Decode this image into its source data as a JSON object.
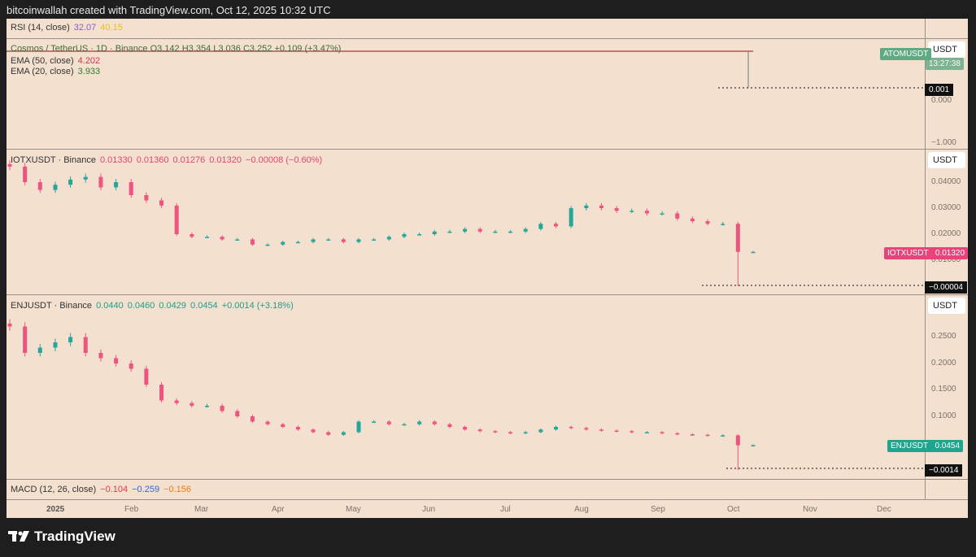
{
  "header": {
    "credit": "bitcoinwallah created with TradingView.com, Oct 12, 2025 10:32 UTC"
  },
  "pane1": {
    "rsi": {
      "label": "RSI (14, close)",
      "v1": "32.07",
      "v2": "40.15"
    },
    "legend": "Cosmos / TetherUS · 1D · Binance  O3.142  H3.354  L3.036  C3.252  +0.109 (+3.47%)",
    "ema50": {
      "label": "EMA (50, close)",
      "value": "4.202"
    },
    "ema20": {
      "label": "EMA (20, close)",
      "value": "3.933"
    },
    "currency": "USDT",
    "tag": "ATOMUSDT",
    "countdown": "13:27:38",
    "low_marker": "0.001",
    "ticks": [
      "0.000",
      "−1.000"
    ]
  },
  "pane2": {
    "symbol": "IOTXUSDT · Binance",
    "o": "0.01330",
    "h": "0.01360",
    "l": "0.01276",
    "c": "0.01320",
    "chg": "−0.00008 (−0.60%)",
    "currency": "USDT",
    "tag": "IOTXUSDT",
    "tag_value": "0.01320",
    "low_marker": "−0.00004",
    "ticks": [
      "0.04000",
      "0.03000",
      "0.02000",
      "0.01000"
    ]
  },
  "pane3": {
    "symbol": "ENJUSDT · Binance",
    "o": "0.0440",
    "h": "0.0460",
    "l": "0.0429",
    "c": "0.0454",
    "chg": "+0.0014 (+3.18%)",
    "currency": "USDT",
    "tag": "ENJUSDT",
    "tag_value": "0.0454",
    "low_marker": "−0.0014",
    "ticks": [
      "0.2500",
      "0.2000",
      "0.1500",
      "0.1000"
    ]
  },
  "macd": {
    "label": "MACD (12, 26, close)",
    "v1": "−0.104",
    "v2": "−0.259",
    "v3": "−0.156"
  },
  "time_axis": [
    "2025",
    "Feb",
    "Mar",
    "Apr",
    "May",
    "Jun",
    "Jul",
    "Aug",
    "Sep",
    "Oct",
    "Nov",
    "Dec"
  ],
  "brand": "TradingView",
  "colors": {
    "up": "#26a69a",
    "down": "#ef5380",
    "bg": "#f3e0cf"
  },
  "chart_data": [
    {
      "type": "candlestick",
      "symbol": "IOTXUSDT",
      "ylim": [
        0,
        0.045
      ],
      "closes": [
        0.046,
        0.04,
        0.037,
        0.039,
        0.041,
        0.042,
        0.038,
        0.04,
        0.035,
        0.033,
        0.031,
        0.02,
        0.019,
        0.019,
        0.018,
        0.018,
        0.016,
        0.016,
        0.017,
        0.017,
        0.018,
        0.018,
        0.017,
        0.018,
        0.018,
        0.019,
        0.02,
        0.02,
        0.021,
        0.021,
        0.022,
        0.021,
        0.021,
        0.021,
        0.022,
        0.024,
        0.023,
        0.03,
        0.031,
        0.03,
        0.029,
        0.029,
        0.028,
        0.028,
        0.026,
        0.025,
        0.024,
        0.024,
        0.0132,
        0.0132
      ],
      "last_low": -4e-05
    },
    {
      "type": "candlestick",
      "symbol": "ENJUSDT",
      "ylim": [
        0,
        0.28
      ],
      "closes": [
        0.27,
        0.22,
        0.23,
        0.24,
        0.25,
        0.22,
        0.21,
        0.2,
        0.19,
        0.16,
        0.13,
        0.125,
        0.12,
        0.12,
        0.11,
        0.1,
        0.09,
        0.085,
        0.08,
        0.075,
        0.07,
        0.065,
        0.07,
        0.09,
        0.09,
        0.085,
        0.085,
        0.09,
        0.085,
        0.08,
        0.075,
        0.072,
        0.07,
        0.068,
        0.07,
        0.075,
        0.08,
        0.078,
        0.075,
        0.073,
        0.072,
        0.07,
        0.07,
        0.068,
        0.066,
        0.065,
        0.064,
        0.064,
        0.0454,
        0.0454
      ],
      "last_low": -0.0014
    }
  ]
}
